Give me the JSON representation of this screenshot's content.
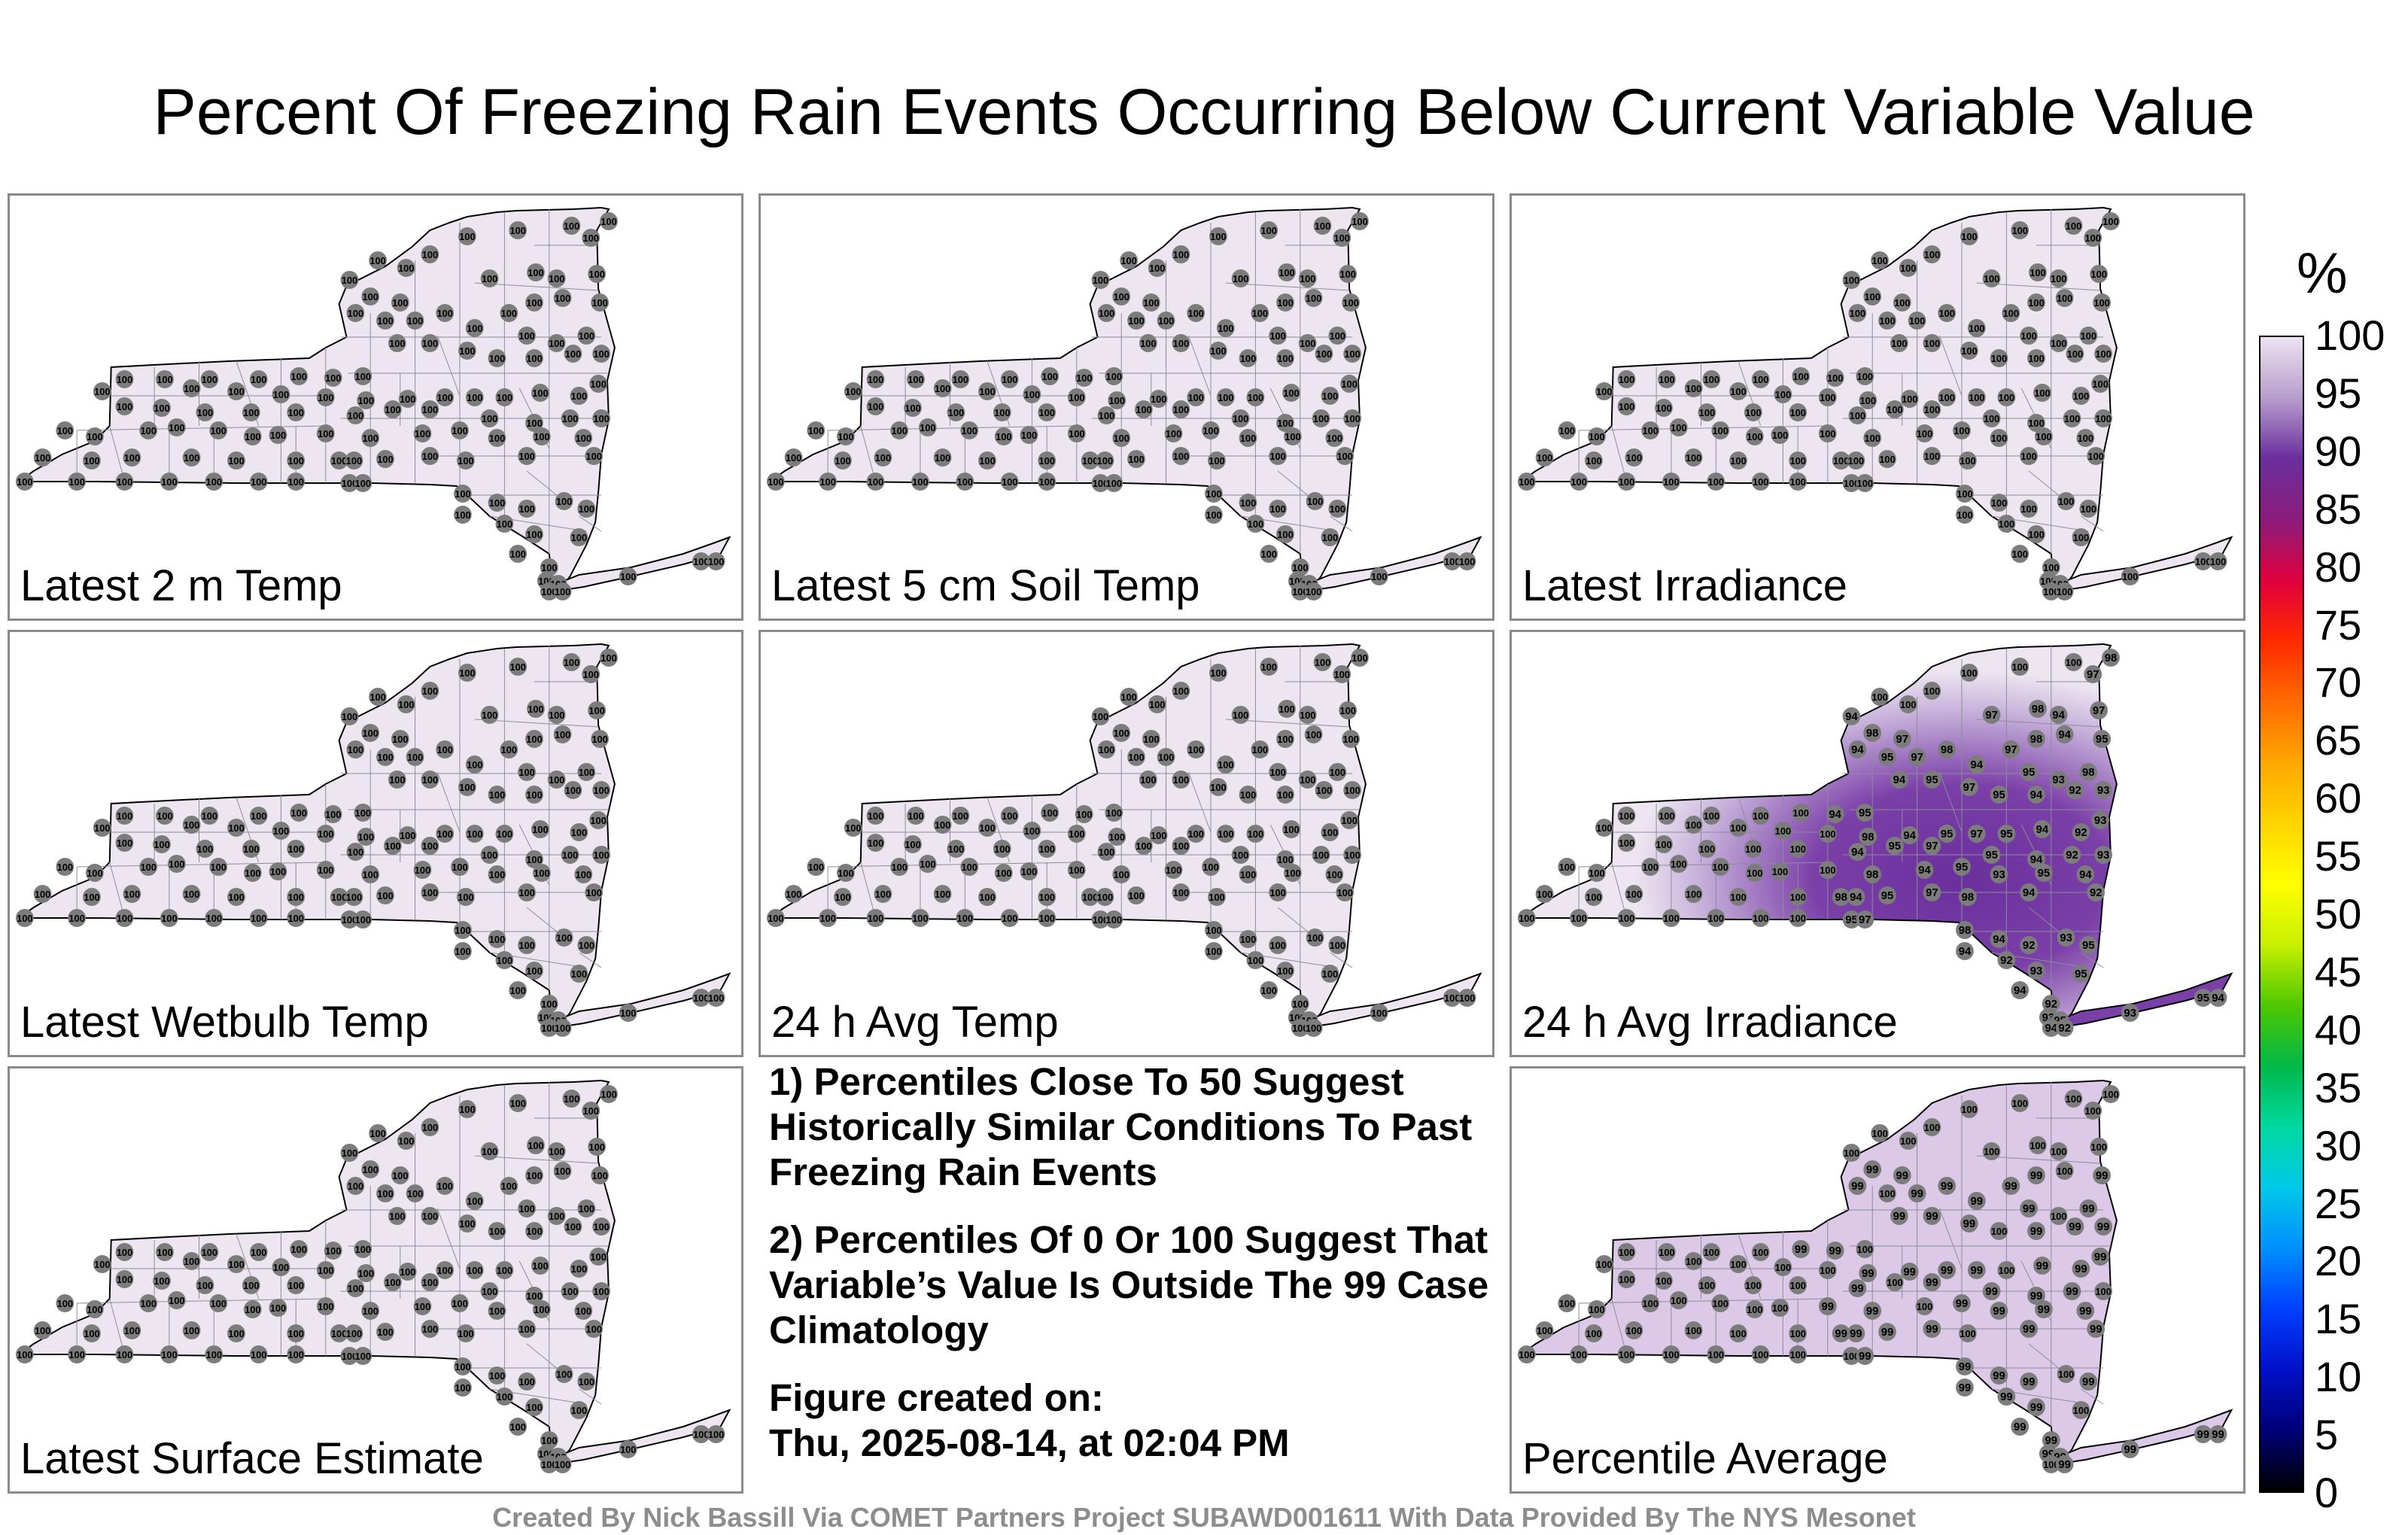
{
  "title": "Percent Of Freezing Rain Events Occurring Below Current Variable Value",
  "colors": {
    "panel_border": "#8a8a8a",
    "state_fill": "#ede6f1",
    "county_line": "#8c8c9a",
    "station_marker": "#7c7c7c",
    "footer_text": "#8d8d8d"
  },
  "panels": [
    {
      "id": "latest-2m-temp",
      "label": "Latest 2 m Temp",
      "display_value": "100"
    },
    {
      "id": "latest-5cm-soil-temp",
      "label": "Latest 5 cm Soil Temp",
      "display_value": "100"
    },
    {
      "id": "latest-irradiance",
      "label": "Latest Irradiance",
      "display_value": "100"
    },
    {
      "id": "latest-wetbulb-temp",
      "label": "Latest Wetbulb Temp",
      "display_value": "100"
    },
    {
      "id": "avg-temp-24h",
      "label": "24 h Avg Temp",
      "display_value": "100"
    },
    {
      "id": "avg-irradiance-24h",
      "label": "24 h Avg Irradiance",
      "display_value": "mixed: 92–100"
    },
    {
      "id": "latest-surface-estimate",
      "label": "Latest Surface Estimate",
      "display_value": "100"
    },
    {
      "id": "percentile-average",
      "label": "Percentile Average",
      "display_value": "mixed: 99–100"
    }
  ],
  "notes": {
    "note1": "1) Percentiles Close To 50 Suggest Historically Similar Conditions To Past Freezing Rain Events",
    "note2": "2) Percentiles Of 0 Or 100 Suggest That Variable’s Value Is Outside The 99 Case Climatology",
    "created_label": "Figure created on:",
    "created_value": "Thu, 2025-08-14, at 02:04 PM"
  },
  "colorbar": {
    "unit": "%",
    "ticks": [
      "100",
      "95",
      "90",
      "85",
      "80",
      "75",
      "70",
      "65",
      "60",
      "55",
      "50",
      "45",
      "40",
      "35",
      "30",
      "25",
      "20",
      "15",
      "10",
      "5",
      "0"
    ],
    "colors_top_to_bottom": [
      "#ece4f1",
      "#b89ccd",
      "#6a2f9c",
      "#8a1c7c",
      "#e0003c",
      "#ff2a00",
      "#ff6a00",
      "#ffa600",
      "#ffd400",
      "#ffff00",
      "#c8f000",
      "#4ec800",
      "#00b84a",
      "#00d8a0",
      "#00c8e8",
      "#0090ff",
      "#0040ff",
      "#0010c8",
      "#000078",
      "#000000"
    ]
  },
  "footer": "Created By Nick Bassill Via COMET Partners Project SUBAWD001611 With Data Provided By The NYS Mesonet"
}
